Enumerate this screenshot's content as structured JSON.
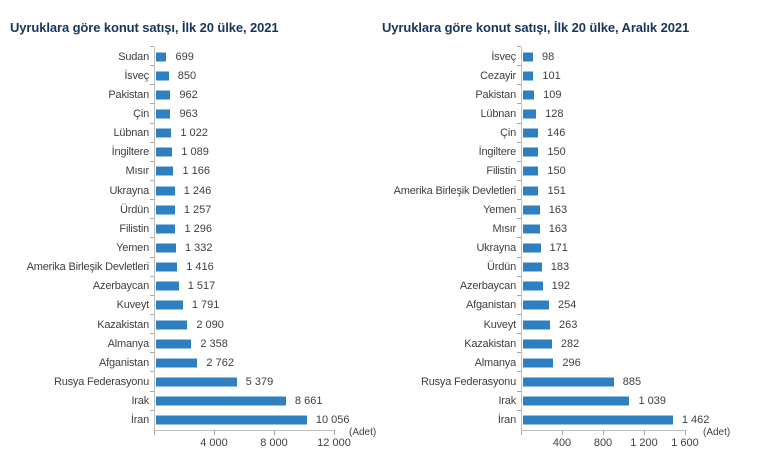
{
  "colors": {
    "bar": "#2E80C0",
    "title": "#17365D",
    "text": "#404040",
    "axis_line": "#BFBFBF",
    "tick": "#A6A6A6",
    "background": "#FFFFFF"
  },
  "chart_data": [
    {
      "type": "bar",
      "orientation": "horizontal",
      "title": "Uyruklara göre konut satışı, İlk 20 ülke, 2021",
      "unit_label": "(Adet)",
      "grid": false,
      "bar_color": "#2E80C0",
      "categories": [
        "Sudan",
        "İsveç",
        "Pakistan",
        "Çin",
        "Lübnan",
        "İngiltere",
        "Mısır",
        "Ukrayna",
        "Ürdün",
        "Filistin",
        "Yemen",
        "Amerika Birleşik Devletleri",
        "Azerbaycan",
        "Kuveyt",
        "Kazakistan",
        "Almanya",
        "Afganistan",
        "Rusya Federasyonu",
        "Irak",
        "İran"
      ],
      "values": [
        699,
        850,
        962,
        963,
        1022,
        1089,
        1166,
        1246,
        1257,
        1296,
        1332,
        1416,
        1517,
        1791,
        2090,
        2358,
        2762,
        5379,
        8661,
        10056
      ],
      "value_labels": [
        "699",
        "850",
        "962",
        "963",
        "1 022",
        "1 089",
        "1 166",
        "1 246",
        "1 257",
        "1 296",
        "1 332",
        "1 416",
        "1 517",
        "1 791",
        "2 090",
        "2 358",
        "2 762",
        "5 379",
        "8 661",
        "10 056"
      ],
      "xlim": [
        0,
        12000
      ],
      "x_ticks": [
        {
          "value": 4000,
          "label": "4 000"
        },
        {
          "value": 8000,
          "label": "8 000"
        },
        {
          "value": 12000,
          "label": "12 000"
        }
      ]
    },
    {
      "type": "bar",
      "orientation": "horizontal",
      "title": "Uyruklara göre konut satışı, İlk 20 ülke, Aralık 2021",
      "unit_label": "(Adet)",
      "grid": false,
      "bar_color": "#2E80C0",
      "categories": [
        "İsveç",
        "Cezayir",
        "Pakistan",
        "Lübnan",
        "Çin",
        "İngiltere",
        "Filistin",
        "Amerika Birleşik Devletleri",
        "Yemen",
        "Mısır",
        "Ukrayna",
        "Ürdün",
        "Azerbaycan",
        "Afganistan",
        "Kuveyt",
        "Kazakistan",
        "Almanya",
        "Rusya Federasyonu",
        "Irak",
        "İran"
      ],
      "values": [
        98,
        101,
        109,
        128,
        146,
        150,
        150,
        151,
        163,
        163,
        171,
        183,
        192,
        254,
        263,
        282,
        296,
        885,
        1039,
        1462
      ],
      "value_labels": [
        "98",
        "101",
        "109",
        "128",
        "146",
        "150",
        "150",
        "151",
        "163",
        "163",
        "171",
        "183",
        "192",
        "254",
        "263",
        "282",
        "296",
        "885",
        "1 039",
        "1 462"
      ],
      "xlim": [
        0,
        1600
      ],
      "x_ticks": [
        {
          "value": 400,
          "label": "400"
        },
        {
          "value": 800,
          "label": "800"
        },
        {
          "value": 1200,
          "label": "1 200"
        },
        {
          "value": 1600,
          "label": "1 600"
        }
      ]
    }
  ]
}
